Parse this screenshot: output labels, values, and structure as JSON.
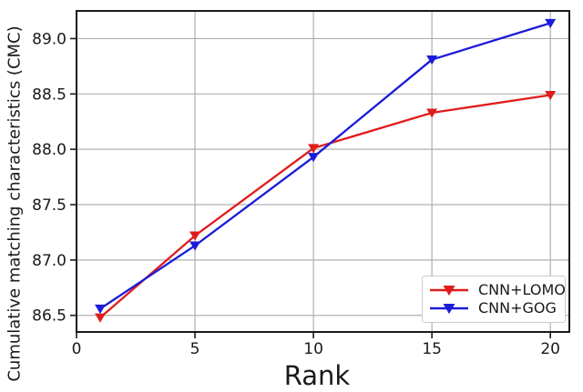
{
  "chart_data": {
    "type": "line",
    "title": "",
    "xlabel": "Rank",
    "ylabel": "Cumulative matching characteristics (CMC)",
    "x": [
      1,
      5,
      10,
      15,
      20
    ],
    "x_ticks": [
      0,
      5,
      10,
      15,
      20
    ],
    "x_tick_labels": [
      "0",
      "5",
      "10",
      "15",
      "20"
    ],
    "y_ticks": [
      86.5,
      87.0,
      87.5,
      88.0,
      88.5,
      89.0
    ],
    "y_tick_labels": [
      "86.5",
      "87.0",
      "87.5",
      "88.0",
      "88.5",
      "89.0"
    ],
    "xlim": [
      0,
      20.8
    ],
    "ylim": [
      86.35,
      89.25
    ],
    "grid": true,
    "legend_position": "lower right",
    "series": [
      {
        "name": "CNN+LOMO",
        "color": "#e01b1b",
        "marker": "triangle-down",
        "values": [
          86.48,
          87.22,
          88.01,
          88.33,
          88.49
        ]
      },
      {
        "name": "CNN+GOG",
        "color": "#1b1bd9",
        "marker": "triangle-down",
        "values": [
          86.56,
          87.13,
          87.93,
          88.81,
          89.14
        ]
      }
    ],
    "colors": {
      "background": "#ffffff",
      "grid": "#b0b0b0",
      "spine": "#1a1a1a",
      "text": "#1a1a1a",
      "legend_border": "#cccccc"
    }
  }
}
